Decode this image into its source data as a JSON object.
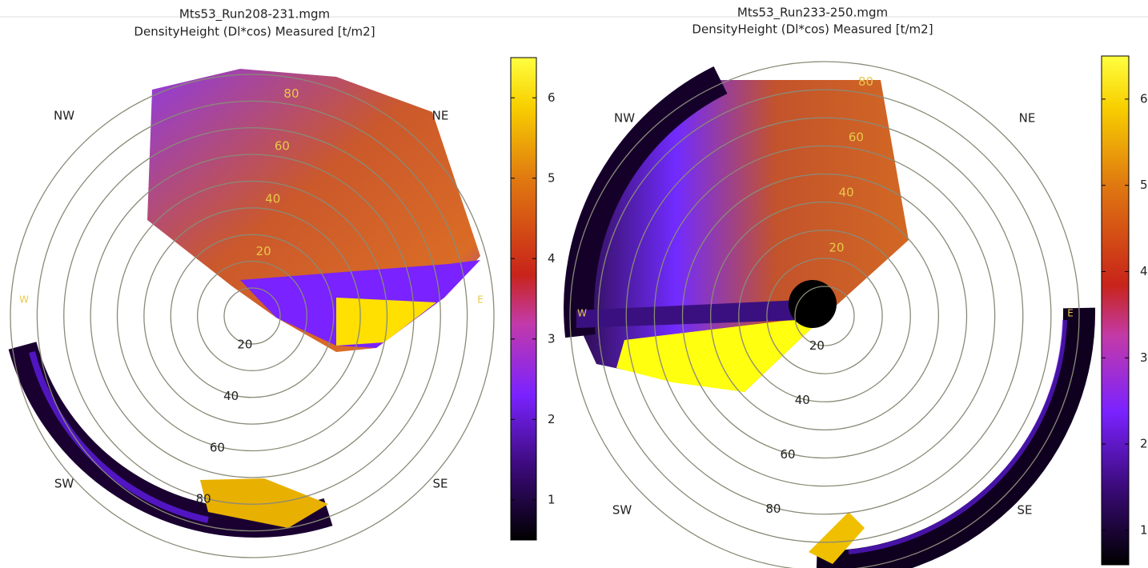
{
  "chart_data": [
    {
      "type": "polar-heatmap",
      "title": "Mts53_Run208-231.mgm",
      "subtitle": "DensityHeight (Dl*cos) Measured [t/m2]",
      "rlim": [
        20,
        100
      ],
      "rticks": [
        20,
        30,
        40,
        50,
        60,
        70,
        80,
        90,
        100
      ],
      "rlabels": [
        20,
        40,
        60,
        80
      ],
      "direction_labels": [
        "NW",
        "NE",
        "W",
        "E",
        "SW",
        "SE"
      ],
      "colorbar_lim": [
        0.5,
        6.5
      ],
      "colorbar_ticks": [
        1,
        2,
        3,
        4,
        5,
        6
      ]
    },
    {
      "type": "polar-heatmap",
      "title": "Mts53_Run233-250.mgm",
      "subtitle": "DensityHeight (Dl*cos) Measured [t/m2]",
      "rlim": [
        20,
        100
      ],
      "rticks": [
        20,
        30,
        40,
        50,
        60,
        70,
        80,
        90,
        100
      ],
      "rlabels": [
        20,
        40,
        60,
        80
      ],
      "direction_labels": [
        "NW",
        "NE",
        "W",
        "E",
        "SW",
        "SE"
      ],
      "colorbar_lim": [
        0.6,
        6.5
      ],
      "colorbar_ticks": [
        1,
        2,
        3,
        4,
        5,
        6
      ]
    }
  ]
}
